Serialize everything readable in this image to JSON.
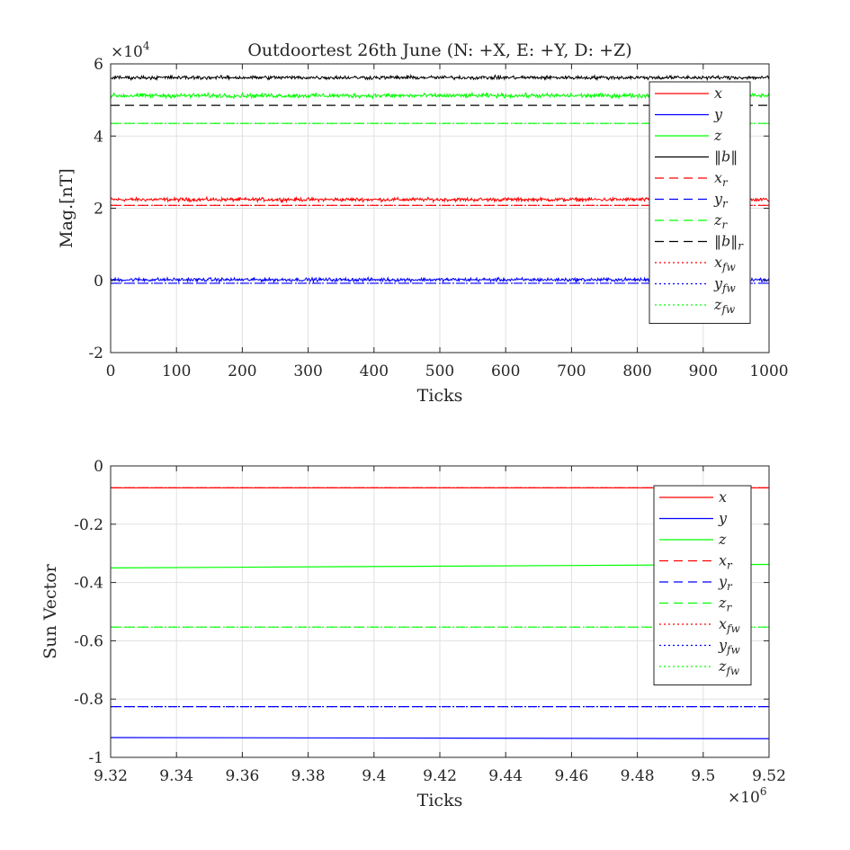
{
  "colors": {
    "x": "#ff0000",
    "y": "#0000ff",
    "z": "#00ff00",
    "b": "#000000",
    "grid": "#e0e0e0",
    "axis": "#262626"
  },
  "chart_data": [
    {
      "type": "line",
      "title": "Outdoortest 26th June (N: +X, E: +Y, D: +Z)",
      "xlabel": "Ticks",
      "ylabel": "Mag.[nT]",
      "exponent_label": "×10",
      "exponent_power": "4",
      "xlim": [
        0,
        1000
      ],
      "ylim": [
        -2,
        6
      ],
      "xticks": [
        0,
        100,
        200,
        300,
        400,
        500,
        600,
        700,
        800,
        900,
        1000
      ],
      "yticks": [
        -2,
        0,
        2,
        4,
        6
      ],
      "grid": true,
      "legend_position": "top-right",
      "series": [
        {
          "name": "x",
          "style": "solid",
          "color": "#ff0000",
          "mean": 2.24,
          "noise": 0.05,
          "x": [
            0,
            1000
          ]
        },
        {
          "name": "y",
          "style": "solid",
          "color": "#0000ff",
          "mean": 0.02,
          "noise": 0.05,
          "x": [
            0,
            1000
          ]
        },
        {
          "name": "z",
          "style": "solid",
          "color": "#00ff00",
          "mean": 5.12,
          "noise": 0.06,
          "x": [
            0,
            1000
          ]
        },
        {
          "name": "‖b‖",
          "style": "solid",
          "color": "#000000",
          "mean": 5.62,
          "noise": 0.05,
          "x": [
            0,
            1000
          ]
        },
        {
          "name": "x_r",
          "style": "dashed",
          "color": "#ff0000",
          "y": [
            2.08,
            2.08
          ],
          "x": [
            0,
            1000
          ]
        },
        {
          "name": "y_r",
          "style": "dashed",
          "color": "#0000ff",
          "y": [
            -0.08,
            -0.08
          ],
          "x": [
            0,
            1000
          ]
        },
        {
          "name": "z_r",
          "style": "dashed",
          "color": "#00ff00",
          "y": [
            4.35,
            4.35
          ],
          "x": [
            0,
            1000
          ]
        },
        {
          "name": "‖b‖_r",
          "style": "dashed",
          "color": "#000000",
          "y": [
            4.85,
            4.85
          ],
          "x": [
            0,
            1000
          ]
        },
        {
          "name": "x_fw",
          "style": "dotted",
          "color": "#ff0000",
          "y": [
            2.08,
            2.08
          ],
          "x": [
            0,
            1000
          ]
        },
        {
          "name": "y_fw",
          "style": "dotted",
          "color": "#0000ff",
          "y": [
            -0.08,
            -0.08
          ],
          "x": [
            0,
            1000
          ]
        },
        {
          "name": "z_fw",
          "style": "dotted",
          "color": "#00ff00",
          "y": [
            4.35,
            4.35
          ],
          "x": [
            0,
            1000
          ]
        }
      ]
    },
    {
      "type": "line",
      "title": "",
      "xlabel": "Ticks",
      "ylabel": "Sun Vector",
      "x_exponent_label": "×10",
      "x_exponent_power": "6",
      "xlim": [
        9.32,
        9.52
      ],
      "ylim": [
        -1,
        0
      ],
      "xticks": [
        9.32,
        9.34,
        9.36,
        9.38,
        9.4,
        9.42,
        9.44,
        9.46,
        9.48,
        9.5,
        9.52
      ],
      "yticks": [
        -1,
        -0.8,
        -0.6,
        -0.4,
        -0.2,
        0
      ],
      "grid": true,
      "legend_position": "top-right",
      "series": [
        {
          "name": "x",
          "style": "solid",
          "color": "#ff0000",
          "x": [
            9.32,
            9.52
          ],
          "y": [
            -0.075,
            -0.075
          ]
        },
        {
          "name": "y",
          "style": "solid",
          "color": "#0000ff",
          "x": [
            9.32,
            9.52
          ],
          "y": [
            -0.932,
            -0.936
          ]
        },
        {
          "name": "z",
          "style": "solid",
          "color": "#00ff00",
          "x": [
            9.32,
            9.52
          ],
          "y": [
            -0.35,
            -0.338
          ]
        },
        {
          "name": "x_r",
          "style": "dashed",
          "color": "#ff0000",
          "x": [
            9.32,
            9.52
          ],
          "y": [
            -0.075,
            -0.075
          ]
        },
        {
          "name": "y_r",
          "style": "dashed",
          "color": "#0000ff",
          "x": [
            9.32,
            9.52
          ],
          "y": [
            -0.826,
            -0.826
          ]
        },
        {
          "name": "z_r",
          "style": "dashed",
          "color": "#00ff00",
          "x": [
            9.32,
            9.52
          ],
          "y": [
            -0.553,
            -0.553
          ]
        },
        {
          "name": "x_fw",
          "style": "dotted",
          "color": "#ff0000",
          "x": [
            9.32,
            9.52
          ],
          "y": [
            -0.075,
            -0.075
          ]
        },
        {
          "name": "y_fw",
          "style": "dotted",
          "color": "#0000ff",
          "x": [
            9.32,
            9.52
          ],
          "y": [
            -0.826,
            -0.826
          ]
        },
        {
          "name": "z_fw",
          "style": "dotted",
          "color": "#00ff00",
          "x": [
            9.32,
            9.52
          ],
          "y": [
            -0.553,
            -0.553
          ]
        }
      ]
    }
  ]
}
